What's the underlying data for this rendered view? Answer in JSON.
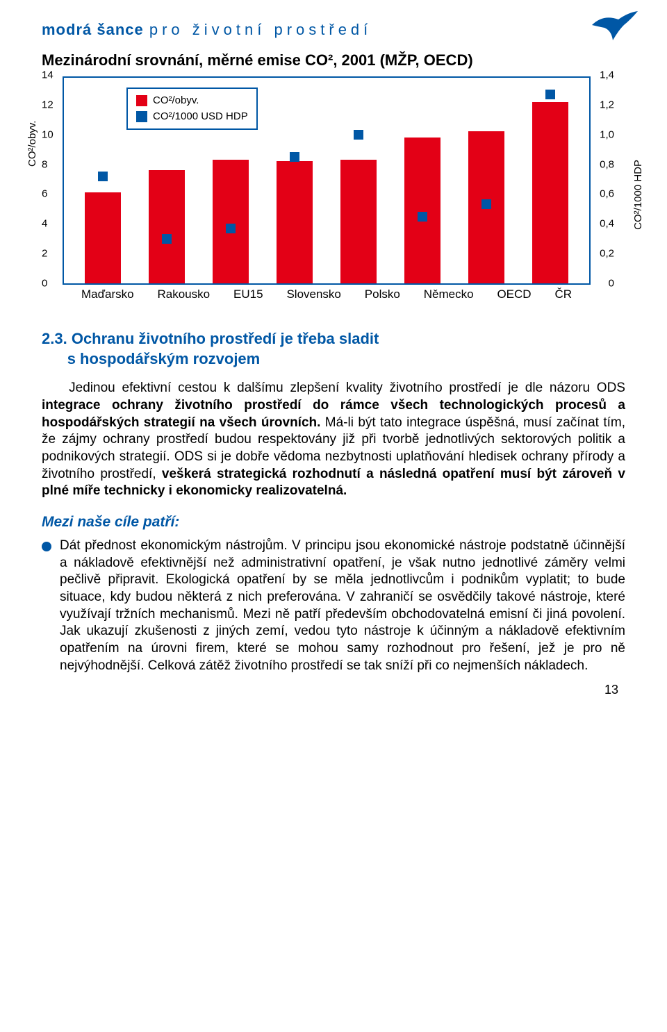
{
  "header": {
    "bold": "modrá šance",
    "light": "pro životní prostředí"
  },
  "chart": {
    "title": "Mezinárodní srovnání, měrné emise CO², 2001 (MŽP, OECD)",
    "type": "bar+marker",
    "legend": {
      "series1": "CO²/obyv.",
      "series2": "CO²/1000 USD HDP"
    },
    "y_left_label": "CO²/obyv.",
    "y_right_label": "CO²/1000 HDP",
    "y_left_max": 14,
    "y_right_max": 1.4,
    "y_left_ticks": [
      "0",
      "2",
      "4",
      "6",
      "8",
      "10",
      "12",
      "14"
    ],
    "y_right_ticks": [
      "0",
      "0,2",
      "0,4",
      "0,6",
      "0,8",
      "1,0",
      "1,2",
      "1,4"
    ],
    "categories": [
      "Maďarsko",
      "Rakousko",
      "EU15",
      "Slovensko",
      "Polsko",
      "Německo",
      "OECD",
      "ČR"
    ],
    "bar_values": [
      6.1,
      7.6,
      8.3,
      8.2,
      8.3,
      9.8,
      10.2,
      12.2
    ],
    "marker_values": [
      0.72,
      0.3,
      0.37,
      0.85,
      1.0,
      0.45,
      0.53,
      1.27
    ],
    "bar_color": "#e30016",
    "marker_color": "#0057a5",
    "border_color": "#0057a5",
    "background_color": "#ffffff"
  },
  "section": {
    "number": "2.3.",
    "title_line1": "Ochranu životního prostředí je třeba sladit",
    "title_line2": "s hospodářským rozvojem"
  },
  "para1_a": "Jedinou efektivní cestou k dalšímu zlepšení kvality životního prostředí je dle názoru ODS ",
  "para1_b": "integrace ochrany životního prostředí do rámce všech technologických procesů a hospodářských strategií na všech úrovních.",
  "para1_c": " Má-li být tato integrace úspěšná, musí začínat tím, že zájmy ochrany prostředí budou respektovány již při tvorbě jednotlivých sektorových politik a podnikových strategií. ODS si je dobře vědoma nezbytnosti uplatňování hledisek ochrany přírody a životního prostředí, ",
  "para1_d": "veškerá strategická rozhodnutí a následná opatření musí být zároveň v plné míře technicky i ekonomicky realizovatelná.",
  "subhead": "Mezi naše cíle patří:",
  "bullet1_lead": "Dát přednost ekonomickým nástrojům.",
  "bullet1_rest": " V principu jsou ekonomické nástroje podstatně účinnější a nákladově efektivnější než administrativní opatření, je však nutno jednotlivé záměry velmi pečlivě připravit. Ekologická opatření by se měla jednotlivcům i podnikům vyplatit; to bude situace, kdy budou některá z nich preferována. V zahraničí se osvědčily takové nástroje, které využívají tržních mechanismů. Mezi ně patří především obchodovatelná emisní či jiná povolení. Jak ukazují zkušenosti z jiných zemí, vedou tyto nástroje k účinným a nákladově efektivním opatřením na úrovni firem, které se mohou samy rozhodnout pro řešení, jež je pro ně nejvýhodnější. Celková zátěž životního prostředí se tak sníží při co nejmenších nákladech.",
  "page_number": "13"
}
